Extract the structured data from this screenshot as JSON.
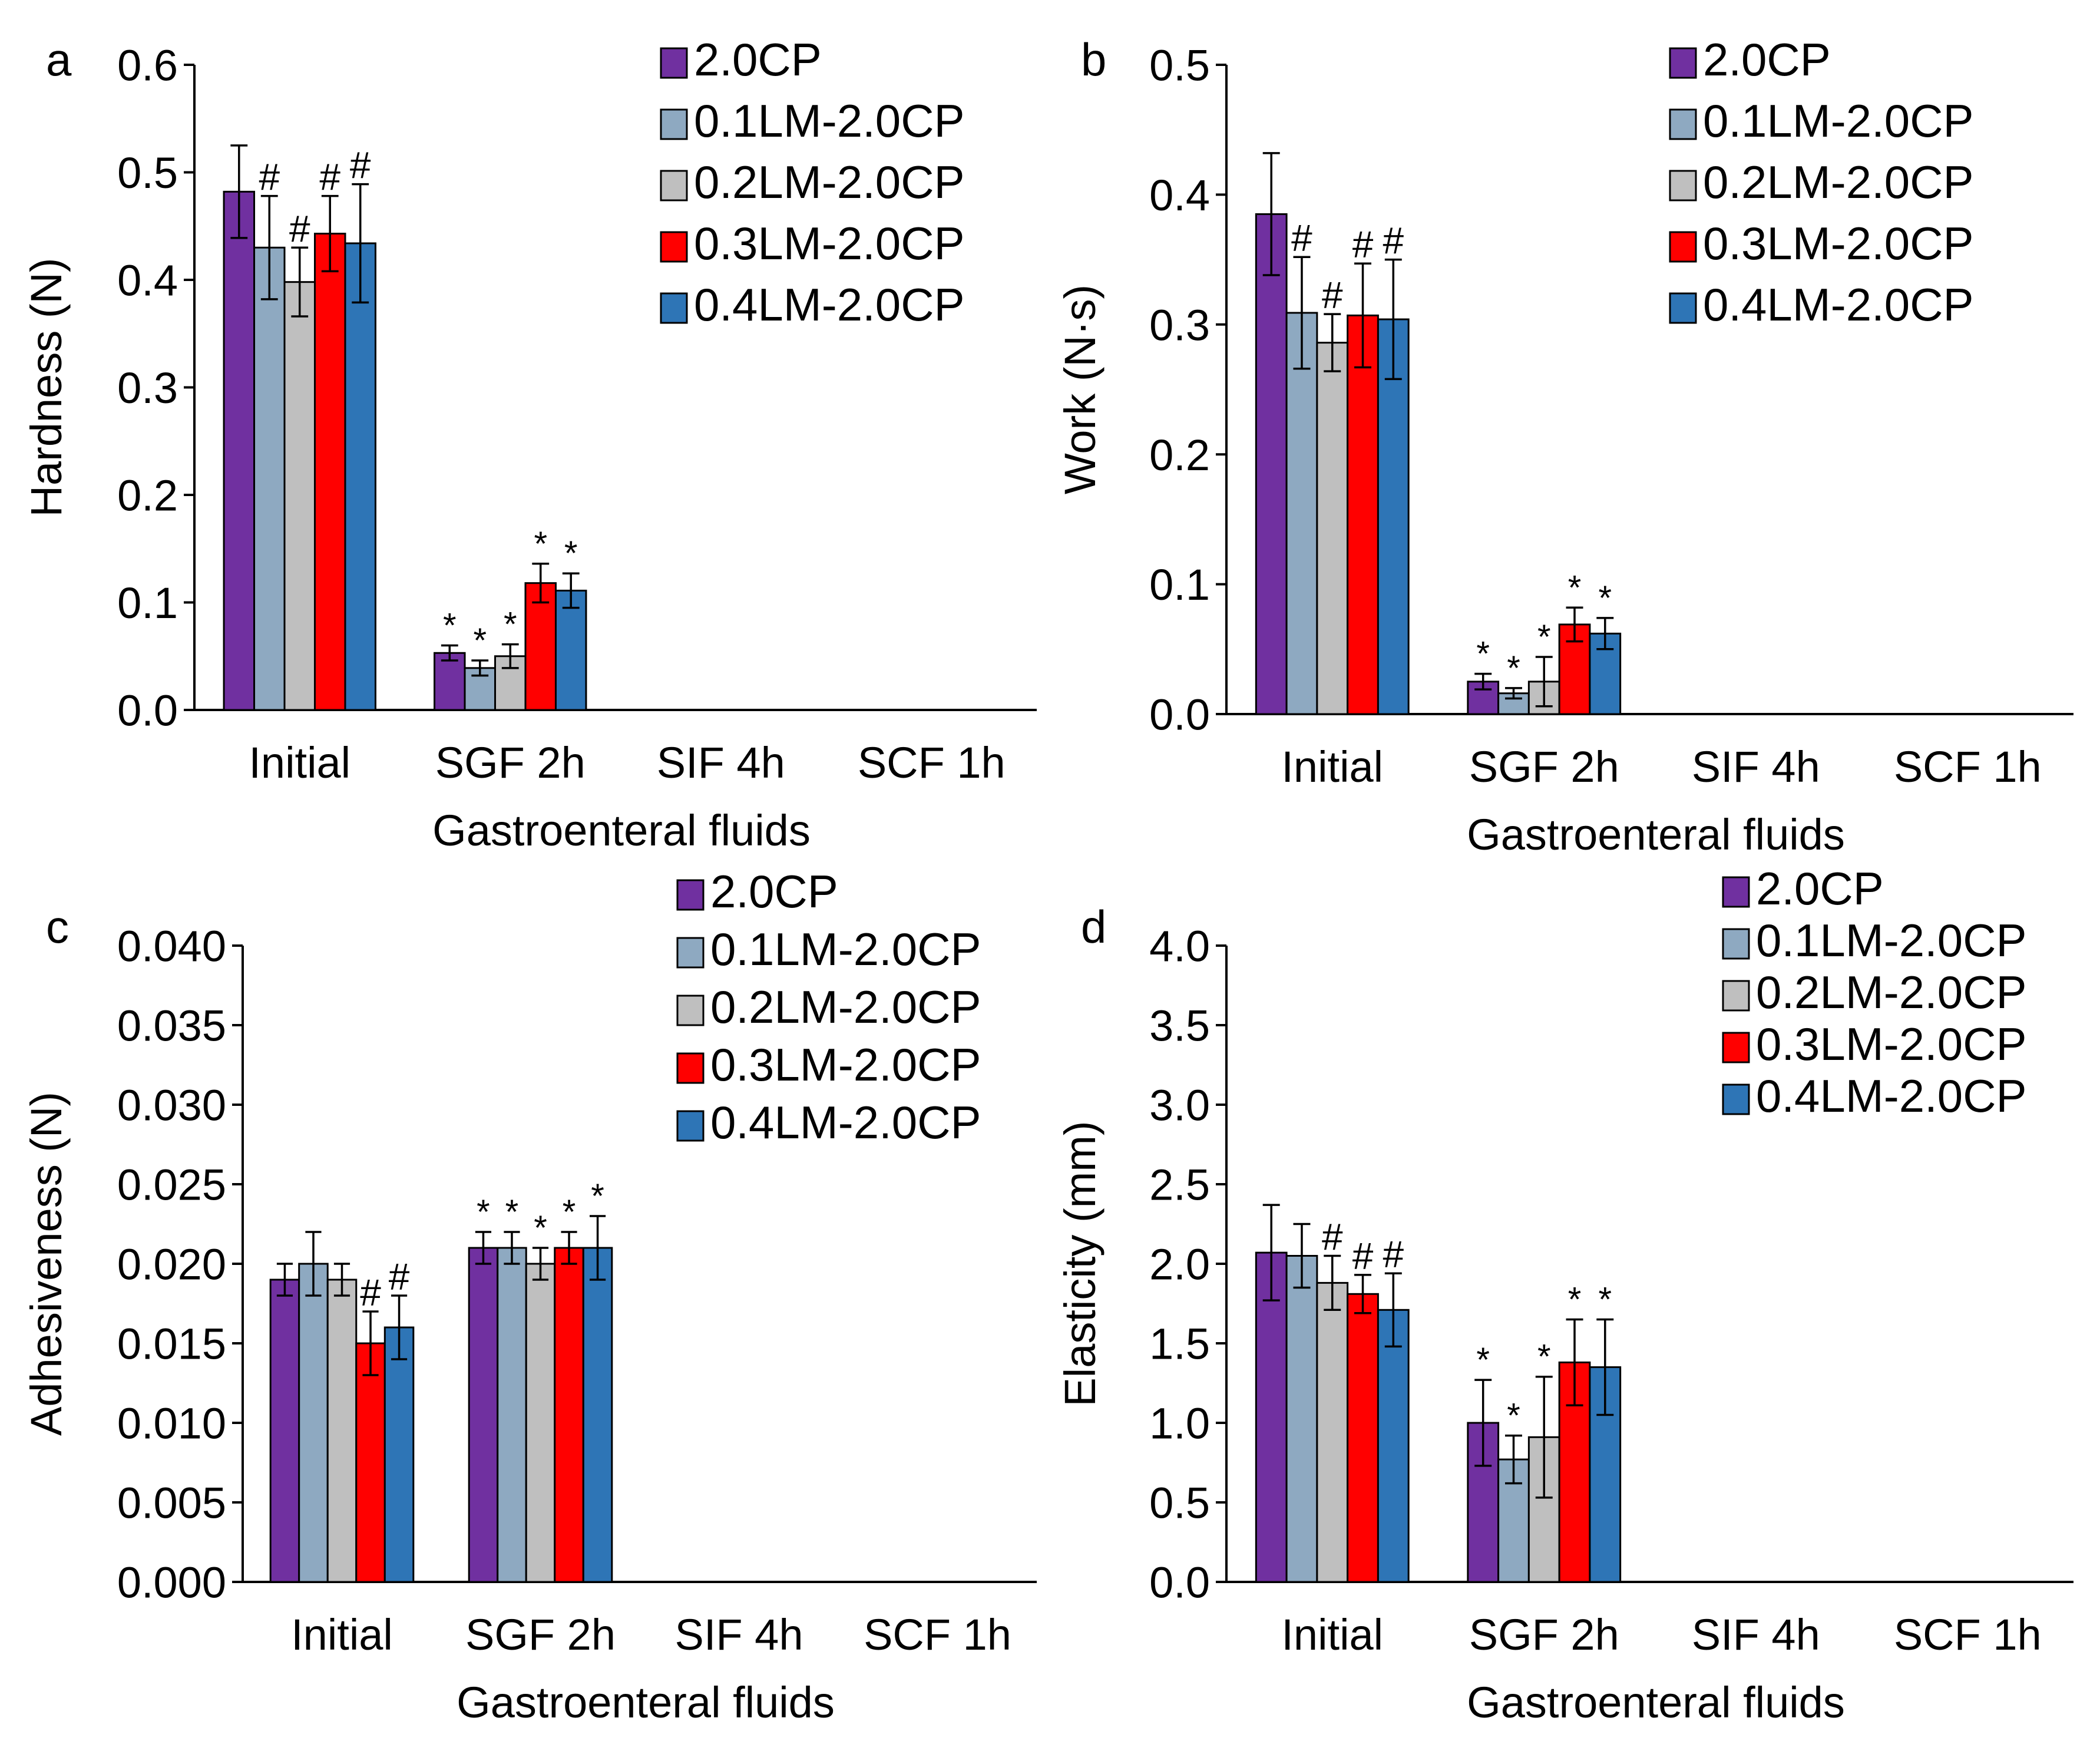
{
  "colors": {
    "2.0CP": "#7030A0",
    "0.1LM-2.0CP": "#8EA9C1",
    "0.2LM-2.0CP": "#BFBFBF",
    "0.3LM-2.0CP": "#FF0000",
    "0.4LM-2.0CP": "#2E75B6"
  },
  "chart_data": [
    {
      "type": "bar",
      "panel_label": "a",
      "xlabel": "Gastroenteral fluids",
      "ylabel": "Hardness (N)",
      "ylim": [
        0,
        0.6
      ],
      "yticks": [
        "0.0",
        "0.1",
        "0.2",
        "0.3",
        "0.4",
        "0.5",
        "0.6"
      ],
      "categories": [
        "Initial",
        "SGF 2h",
        "SIF 4h",
        "SCF 1h"
      ],
      "legend": [
        "2.0CP",
        "0.1LM-2.0CP",
        "0.2LM-2.0CP",
        "0.3LM-2.0CP",
        "0.4LM-2.0CP"
      ],
      "legend_position": "top-right",
      "series": [
        {
          "name": "2.0CP",
          "values": [
            0.482,
            0.053,
            null,
            null
          ],
          "errors": [
            0.043,
            0.007,
            null,
            null
          ],
          "marks": [
            "",
            "*",
            "",
            ""
          ]
        },
        {
          "name": "0.1LM-2.0CP",
          "values": [
            0.43,
            0.039,
            null,
            null
          ],
          "errors": [
            0.048,
            0.007,
            null,
            null
          ],
          "marks": [
            "#",
            "*",
            "",
            ""
          ]
        },
        {
          "name": "0.2LM-2.0CP",
          "values": [
            0.398,
            0.05,
            null,
            null
          ],
          "errors": [
            0.032,
            0.011,
            null,
            null
          ],
          "marks": [
            "#",
            "*",
            "",
            ""
          ]
        },
        {
          "name": "0.3LM-2.0CP",
          "values": [
            0.443,
            0.118,
            null,
            null
          ],
          "errors": [
            0.035,
            0.018,
            null,
            null
          ],
          "marks": [
            "#",
            "*",
            "",
            ""
          ]
        },
        {
          "name": "0.4LM-2.0CP",
          "values": [
            0.434,
            0.111,
            null,
            null
          ],
          "errors": [
            0.055,
            0.016,
            null,
            null
          ],
          "marks": [
            "#",
            "*",
            "",
            ""
          ]
        }
      ]
    },
    {
      "type": "bar",
      "panel_label": "b",
      "xlabel": "Gastroenteral fluids",
      "ylabel": "Work (N·s)",
      "ylim": [
        0,
        0.5
      ],
      "yticks": [
        "0.0",
        "0.1",
        "0.2",
        "0.3",
        "0.4",
        "0.5"
      ],
      "categories": [
        "Initial",
        "SGF 2h",
        "SIF 4h",
        "SCF 1h"
      ],
      "legend": [
        "2.0CP",
        "0.1LM-2.0CP",
        "0.2LM-2.0CP",
        "0.3LM-2.0CP",
        "0.4LM-2.0CP"
      ],
      "legend_position": "top-right",
      "series": [
        {
          "name": "2.0CP",
          "values": [
            0.385,
            0.025,
            null,
            null
          ],
          "errors": [
            0.047,
            0.006,
            null,
            null
          ],
          "marks": [
            "",
            "*",
            "",
            ""
          ]
        },
        {
          "name": "0.1LM-2.0CP",
          "values": [
            0.309,
            0.016,
            null,
            null
          ],
          "errors": [
            0.043,
            0.004,
            null,
            null
          ],
          "marks": [
            "#",
            "*",
            "",
            ""
          ]
        },
        {
          "name": "0.2LM-2.0CP",
          "values": [
            0.286,
            0.025,
            null,
            null
          ],
          "errors": [
            0.022,
            0.019,
            null,
            null
          ],
          "marks": [
            "#",
            "*",
            "",
            ""
          ]
        },
        {
          "name": "0.3LM-2.0CP",
          "values": [
            0.307,
            0.069,
            null,
            null
          ],
          "errors": [
            0.04,
            0.013,
            null,
            null
          ],
          "marks": [
            "#",
            "*",
            "",
            ""
          ]
        },
        {
          "name": "0.4LM-2.0CP",
          "values": [
            0.304,
            0.062,
            null,
            null
          ],
          "errors": [
            0.046,
            0.012,
            null,
            null
          ],
          "marks": [
            "#",
            "*",
            "",
            ""
          ]
        }
      ]
    },
    {
      "type": "bar",
      "panel_label": "c",
      "xlabel": "Gastroenteral fluids",
      "ylabel": "Adhesiveness (N)",
      "ylim": [
        0,
        0.04
      ],
      "yticks": [
        "0.000",
        "0.005",
        "0.010",
        "0.015",
        "0.020",
        "0.025",
        "0.030",
        "0.035",
        "0.040"
      ],
      "categories": [
        "Initial",
        "SGF 2h",
        "SIF 4h",
        "SCF 1h"
      ],
      "legend": [
        "2.0CP",
        "0.1LM-2.0CP",
        "0.2LM-2.0CP",
        "0.3LM-2.0CP",
        "0.4LM-2.0CP"
      ],
      "legend_position": "top-right",
      "series": [
        {
          "name": "2.0CP",
          "values": [
            0.019,
            0.021,
            null,
            null
          ],
          "errors": [
            0.001,
            0.001,
            null,
            null
          ],
          "marks": [
            "",
            "*",
            "",
            ""
          ]
        },
        {
          "name": "0.1LM-2.0CP",
          "values": [
            0.02,
            0.021,
            null,
            null
          ],
          "errors": [
            0.002,
            0.001,
            null,
            null
          ],
          "marks": [
            "",
            "*",
            "",
            ""
          ]
        },
        {
          "name": "0.2LM-2.0CP",
          "values": [
            0.019,
            0.02,
            null,
            null
          ],
          "errors": [
            0.001,
            0.001,
            null,
            null
          ],
          "marks": [
            "",
            "*",
            "",
            ""
          ]
        },
        {
          "name": "0.3LM-2.0CP",
          "values": [
            0.015,
            0.021,
            null,
            null
          ],
          "errors": [
            0.002,
            0.001,
            null,
            null
          ],
          "marks": [
            "#",
            "*",
            "",
            ""
          ]
        },
        {
          "name": "0.4LM-2.0CP",
          "values": [
            0.016,
            0.021,
            null,
            null
          ],
          "errors": [
            0.002,
            0.002,
            null,
            null
          ],
          "marks": [
            "#",
            "*",
            "",
            ""
          ]
        }
      ]
    },
    {
      "type": "bar",
      "panel_label": "d",
      "xlabel": "Gastroenteral fluids",
      "ylabel": "Elasticity (mm)",
      "ylim": [
        0,
        4.0
      ],
      "yticks": [
        "0.0",
        "0.5",
        "1.0",
        "1.5",
        "2.0",
        "2.5",
        "3.0",
        "3.5",
        "4.0"
      ],
      "categories": [
        "Initial",
        "SGF 2h",
        "SIF 4h",
        "SCF 1h"
      ],
      "legend": [
        "2.0CP",
        "0.1LM-2.0CP",
        "0.2LM-2.0CP",
        "0.3LM-2.0CP",
        "0.4LM-2.0CP"
      ],
      "legend_position": "top-right",
      "series": [
        {
          "name": "2.0CP",
          "values": [
            2.07,
            1.0,
            null,
            null
          ],
          "errors": [
            0.3,
            0.27,
            null,
            null
          ],
          "marks": [
            "",
            "*",
            "",
            ""
          ]
        },
        {
          "name": "0.1LM-2.0CP",
          "values": [
            2.05,
            0.77,
            null,
            null
          ],
          "errors": [
            0.2,
            0.15,
            null,
            null
          ],
          "marks": [
            "",
            "*",
            "",
            ""
          ]
        },
        {
          "name": "0.2LM-2.0CP",
          "values": [
            1.88,
            0.91,
            null,
            null
          ],
          "errors": [
            0.17,
            0.38,
            null,
            null
          ],
          "marks": [
            "#",
            "*",
            "",
            ""
          ]
        },
        {
          "name": "0.3LM-2.0CP",
          "values": [
            1.81,
            1.38,
            null,
            null
          ],
          "errors": [
            0.12,
            0.27,
            null,
            null
          ],
          "marks": [
            "#",
            "*",
            "",
            ""
          ]
        },
        {
          "name": "0.4LM-2.0CP",
          "values": [
            1.71,
            1.35,
            null,
            null
          ],
          "errors": [
            0.23,
            0.3,
            null,
            null
          ],
          "marks": [
            "#",
            "*",
            "",
            ""
          ]
        }
      ]
    }
  ]
}
